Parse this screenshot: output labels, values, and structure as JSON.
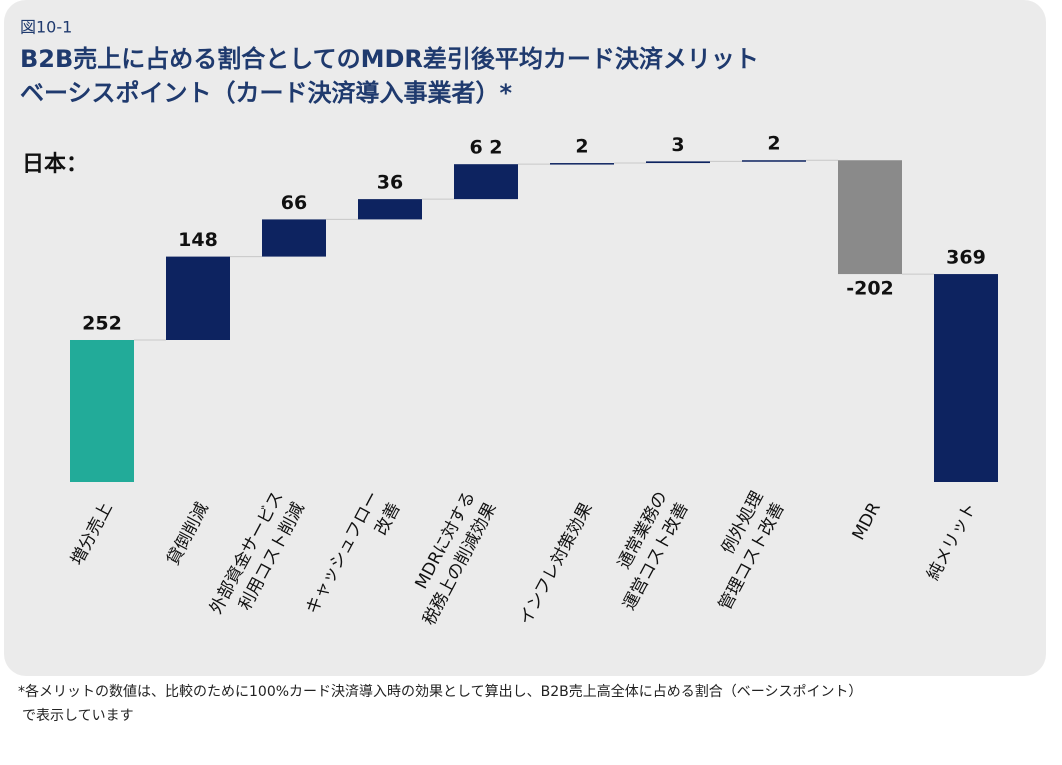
{
  "chart_data": {
    "type": "waterfall",
    "figure_label": "図10-1",
    "title": [
      "B2B売上に占める割合としてのMDR差引後平均カード決済メリット",
      "ベーシスポイント（カード決済導入事業者）*"
    ],
    "subtitle": "日本：",
    "categories": [
      [
        "増分売上"
      ],
      [
        "貸倒削減"
      ],
      [
        "外部資金サービス",
        "利用コスト削減"
      ],
      [
        "キャッシュフロー",
        "改善"
      ],
      [
        "MDRに対する",
        "税務上の削減効果"
      ],
      [
        "インフレ対策効果"
      ],
      [
        "通常業務の",
        "運営コスト改善"
      ],
      [
        "例外処理",
        "管理コスト改善"
      ],
      [
        "MDR"
      ],
      [
        "純メリット"
      ]
    ],
    "values": [
      252,
      148,
      66,
      36,
      62,
      2,
      3,
      2,
      -202,
      369
    ],
    "value_labels": [
      "252",
      "148",
      "66",
      "36",
      "6 2",
      "2",
      "3",
      "2",
      "-202",
      "369"
    ],
    "colors": [
      "#22ab99",
      "#0d2360",
      "#0d2360",
      "#0d2360",
      "#0d2360",
      "#0d2360",
      "#0d2360",
      "#0d2360",
      "#8a8a8a",
      "#0d2360"
    ],
    "footnote": [
      "*各メリットの数値は、比較のために100%カード決済導入時の効果として算出し、B2B売上高全体に占める割合（ベーシスポイント）",
      "で表示しています"
    ]
  }
}
